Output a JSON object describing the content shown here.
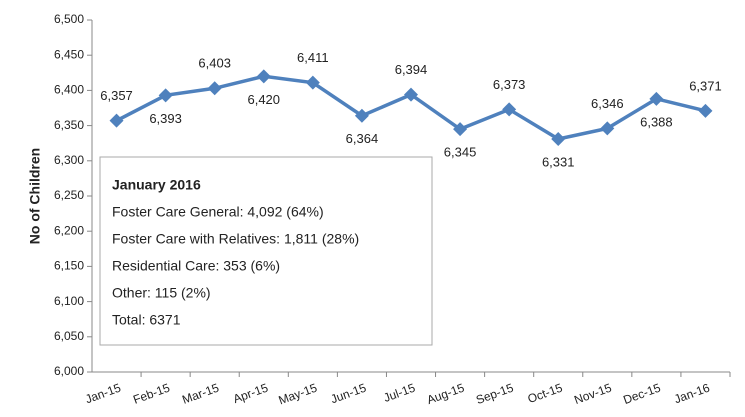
{
  "chart_data": {
    "type": "line",
    "y_label": "No of Children",
    "categories": [
      "Jan-15",
      "Feb-15",
      "Mar-15",
      "Apr-15",
      "May-15",
      "Jun-15",
      "Jul-15",
      "Aug-15",
      "Sep-15",
      "Oct-15",
      "Nov-15",
      "Dec-15",
      "Jan-16"
    ],
    "series": [
      {
        "name": "No of Children",
        "color": "#4f81bd",
        "values": [
          6357,
          6393,
          6403,
          6420,
          6411,
          6364,
          6394,
          6345,
          6373,
          6331,
          6346,
          6388,
          6371
        ],
        "value_labels": [
          "6,357",
          "6,393",
          "6,403",
          "6,420",
          "6,411",
          "6,364",
          "6,394",
          "6,345",
          "6,373",
          "6,331",
          "6,346",
          "6,388",
          "6,371"
        ]
      }
    ],
    "ylim": [
      6000,
      6500
    ],
    "yticks": [
      {
        "value": 6000,
        "label": "6,000"
      },
      {
        "value": 6050,
        "label": "6,050"
      },
      {
        "value": 6100,
        "label": "6,100"
      },
      {
        "value": 6150,
        "label": "6,150"
      },
      {
        "value": 6200,
        "label": "6,200"
      },
      {
        "value": 6250,
        "label": "6,250"
      },
      {
        "value": 6300,
        "label": "6,300"
      },
      {
        "value": 6350,
        "label": "6,350"
      },
      {
        "value": 6400,
        "label": "6,400"
      },
      {
        "value": 6450,
        "label": "6,450"
      },
      {
        "value": 6500,
        "label": "6,500"
      }
    ],
    "grid": false,
    "annotation": [
      "January 2016",
      "Foster Care General:  4,092 (64%)",
      "Foster Care with Relatives: 1,811 (28%)",
      "Residential Care: 353 (6%)",
      "Other: 115 (2%)",
      "Total: 6371"
    ]
  }
}
